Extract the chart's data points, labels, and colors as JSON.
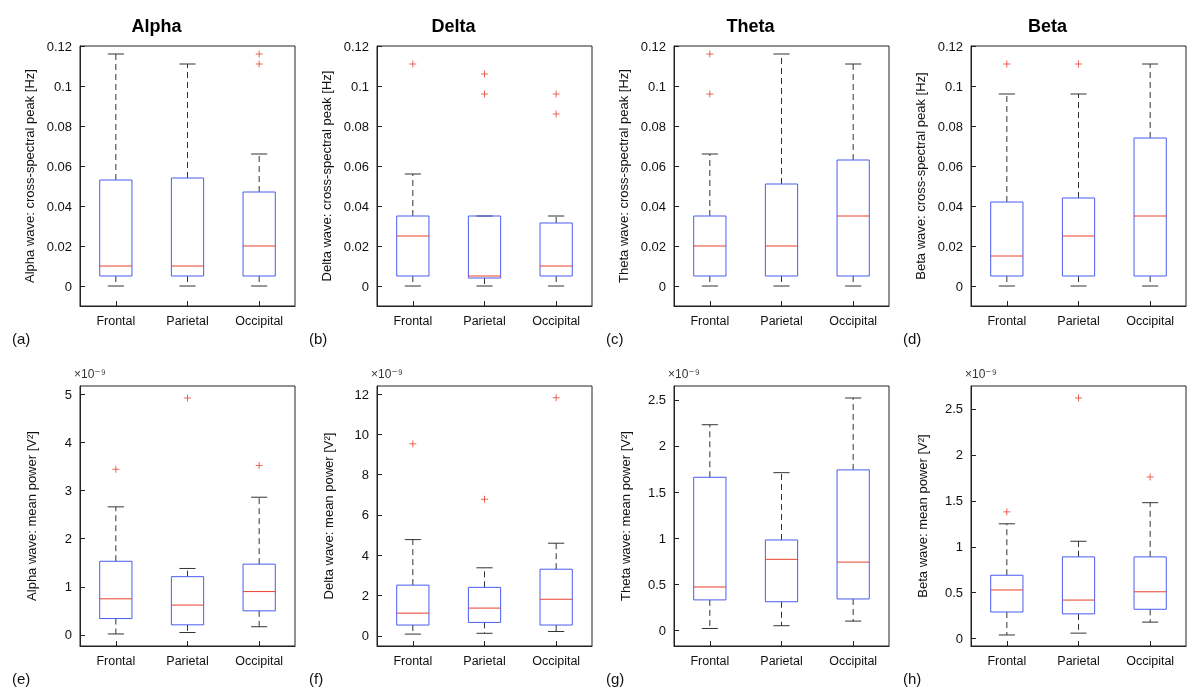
{
  "chart_data": [
    {
      "type": "box",
      "title": "Alpha",
      "ylabel": "Alpha wave: cross-spectral peak [Hz]",
      "categories": [
        "Frontal",
        "Parietal",
        "Occipital"
      ],
      "ylim": [
        -0.01,
        0.12
      ],
      "yticks": [
        0,
        0.02,
        0.04,
        0.06,
        0.08,
        0.1,
        0.12
      ],
      "marker": "cross",
      "annotations": [
        "(a)"
      ],
      "series": [
        {
          "color": "#4a5cf0",
          "boxes": [
            {
              "low": 0,
              "q1": 0.005,
              "median": 0.01,
              "q3": 0.053,
              "high": 0.116
            },
            {
              "low": 0,
              "q1": 0.005,
              "median": 0.01,
              "q3": 0.054,
              "high": 0.111
            },
            {
              "low": 0,
              "q1": 0.005,
              "median": 0.02,
              "q3": 0.047,
              "high": 0.066,
              "outliers": [
                0.116,
                0.111
              ]
            }
          ]
        }
      ]
    },
    {
      "type": "box",
      "title": "Delta",
      "ylabel": "Delta wave: cross-spectral peak [Hz]",
      "categories": [
        "Frontal",
        "Parietal",
        "Occipital"
      ],
      "ylim": [
        -0.01,
        0.12
      ],
      "yticks": [
        0,
        0.02,
        0.04,
        0.06,
        0.08,
        0.1,
        0.12
      ],
      "marker": "cross",
      "annotations": [
        "(b)"
      ],
      "series": [
        {
          "color": "#4a5cf0",
          "boxes": [
            {
              "low": 0,
              "q1": 0.005,
              "median": 0.025,
              "q3": 0.035,
              "high": 0.056,
              "outliers": [
                0.111
              ]
            },
            {
              "low": 0,
              "q1": 0.004,
              "median": 0.005,
              "q3": 0.035,
              "high": 0.035,
              "outliers": [
                0.106,
                0.096
              ]
            },
            {
              "low": 0,
              "q1": 0.005,
              "median": 0.01,
              "q3": 0.0315,
              "high": 0.035,
              "outliers": [
                0.096,
                0.086
              ]
            }
          ]
        }
      ]
    },
    {
      "type": "box",
      "title": "Theta",
      "ylabel": "Theta wave: cross-spectral peak [Hz]",
      "categories": [
        "Frontal",
        "Parietal",
        "Occipital"
      ],
      "ylim": [
        -0.01,
        0.12
      ],
      "yticks": [
        0,
        0.02,
        0.04,
        0.06,
        0.08,
        0.1,
        0.12
      ],
      "marker": "cross",
      "annotations": [
        "(c)"
      ],
      "series": [
        {
          "color": "#4a5cf0",
          "boxes": [
            {
              "low": 0,
              "q1": 0.005,
              "median": 0.02,
              "q3": 0.035,
              "high": 0.066,
              "outliers": [
                0.116,
                0.096
              ]
            },
            {
              "low": 0,
              "q1": 0.005,
              "median": 0.02,
              "q3": 0.051,
              "high": 0.116
            },
            {
              "low": 0,
              "q1": 0.005,
              "median": 0.035,
              "q3": 0.063,
              "high": 0.111
            }
          ]
        }
      ]
    },
    {
      "type": "box",
      "title": "Beta",
      "ylabel": "Beta wave: cross-spectral peak [Hz]",
      "categories": [
        "Frontal",
        "Parietal",
        "Occipital"
      ],
      "ylim": [
        -0.01,
        0.12
      ],
      "yticks": [
        0,
        0.02,
        0.04,
        0.06,
        0.08,
        0.1,
        0.12
      ],
      "marker": "cross",
      "annotations": [
        "(d)"
      ],
      "series": [
        {
          "color": "#4a5cf0",
          "boxes": [
            {
              "low": 0,
              "q1": 0.005,
              "median": 0.015,
              "q3": 0.042,
              "high": 0.096,
              "outliers": [
                0.111
              ]
            },
            {
              "low": 0,
              "q1": 0.005,
              "median": 0.025,
              "q3": 0.044,
              "high": 0.096,
              "outliers": [
                0.111
              ]
            },
            {
              "low": 0,
              "q1": 0.005,
              "median": 0.035,
              "q3": 0.074,
              "high": 0.111
            }
          ]
        }
      ]
    },
    {
      "type": "box",
      "ylabel": "Alpha wave: mean power [V²]",
      "categories": [
        "Frontal",
        "Parietal",
        "Occipital"
      ],
      "ylim": [
        -0.23,
        5.17
      ],
      "yticks": [
        0,
        1,
        2,
        3,
        4,
        5
      ],
      "marker": "cross",
      "annotations": [
        "×10⁻⁹",
        "(e)"
      ],
      "series": [
        {
          "color": "#4a5cf0",
          "boxes": [
            {
              "low": 0.02,
              "q1": 0.34,
              "median": 0.75,
              "q3": 1.53,
              "high": 2.66,
              "outliers": [
                3.44
              ]
            },
            {
              "low": 0.05,
              "q1": 0.21,
              "median": 0.62,
              "q3": 1.21,
              "high": 1.38,
              "outliers": [
                4.92
              ]
            },
            {
              "low": 0.17,
              "q1": 0.5,
              "median": 0.9,
              "q3": 1.47,
              "high": 2.86,
              "outliers": [
                3.52
              ]
            }
          ]
        }
      ]
    },
    {
      "type": "box",
      "ylabel": "Delta wave: mean power [V²]",
      "categories": [
        "Frontal",
        "Parietal",
        "Occipital"
      ],
      "ylim": [
        -0.5,
        12.4
      ],
      "yticks": [
        0,
        2,
        4,
        6,
        8,
        10,
        12
      ],
      "marker": "cross",
      "annotations": [
        "×10⁻⁹",
        "(f)"
      ],
      "series": [
        {
          "color": "#4a5cf0",
          "boxes": [
            {
              "low": 0.09,
              "q1": 0.54,
              "median": 1.13,
              "q3": 2.52,
              "high": 4.78,
              "outliers": [
                9.53
              ]
            },
            {
              "low": 0.13,
              "q1": 0.67,
              "median": 1.38,
              "q3": 2.41,
              "high": 3.38,
              "outliers": [
                6.78
              ]
            },
            {
              "low": 0.22,
              "q1": 0.54,
              "median": 1.82,
              "q3": 3.31,
              "high": 4.6,
              "outliers": [
                11.82
              ]
            }
          ]
        }
      ]
    },
    {
      "type": "box",
      "ylabel": "Theta wave: mean power [V²]",
      "categories": [
        "Frontal",
        "Parietal",
        "Occipital"
      ],
      "ylim": [
        -0.17,
        2.65
      ],
      "yticks": [
        0,
        0.5,
        1,
        1.5,
        2,
        2.5
      ],
      "annotations": [
        "×10⁻⁹",
        "(g)"
      ],
      "series": [
        {
          "color": "#4a5cf0",
          "boxes": [
            {
              "low": 0.02,
              "q1": 0.33,
              "median": 0.47,
              "q3": 1.66,
              "high": 2.23
            },
            {
              "low": 0.05,
              "q1": 0.31,
              "median": 0.77,
              "q3": 0.98,
              "high": 1.71
            },
            {
              "low": 0.1,
              "q1": 0.34,
              "median": 0.74,
              "q3": 1.74,
              "high": 2.52
            }
          ]
        }
      ]
    },
    {
      "type": "box",
      "ylabel": "Beta wave: mean power [V²]",
      "categories": [
        "Frontal",
        "Parietal",
        "Occipital"
      ],
      "ylim": [
        -0.08,
        2.75
      ],
      "yticks": [
        0,
        0.5,
        1,
        1.5,
        2,
        2.5
      ],
      "marker": "cross",
      "annotations": [
        "×10⁻⁹",
        "(h)"
      ],
      "series": [
        {
          "color": "#4a5cf0",
          "boxes": [
            {
              "low": 0.04,
              "q1": 0.29,
              "median": 0.53,
              "q3": 0.69,
              "high": 1.25,
              "outliers": [
                1.38
              ]
            },
            {
              "low": 0.06,
              "q1": 0.27,
              "median": 0.42,
              "q3": 0.89,
              "high": 1.06,
              "outliers": [
                2.62
              ]
            },
            {
              "low": 0.18,
              "q1": 0.32,
              "median": 0.51,
              "q3": 0.89,
              "high": 1.48,
              "outliers": [
                1.76
              ]
            }
          ]
        }
      ]
    }
  ]
}
